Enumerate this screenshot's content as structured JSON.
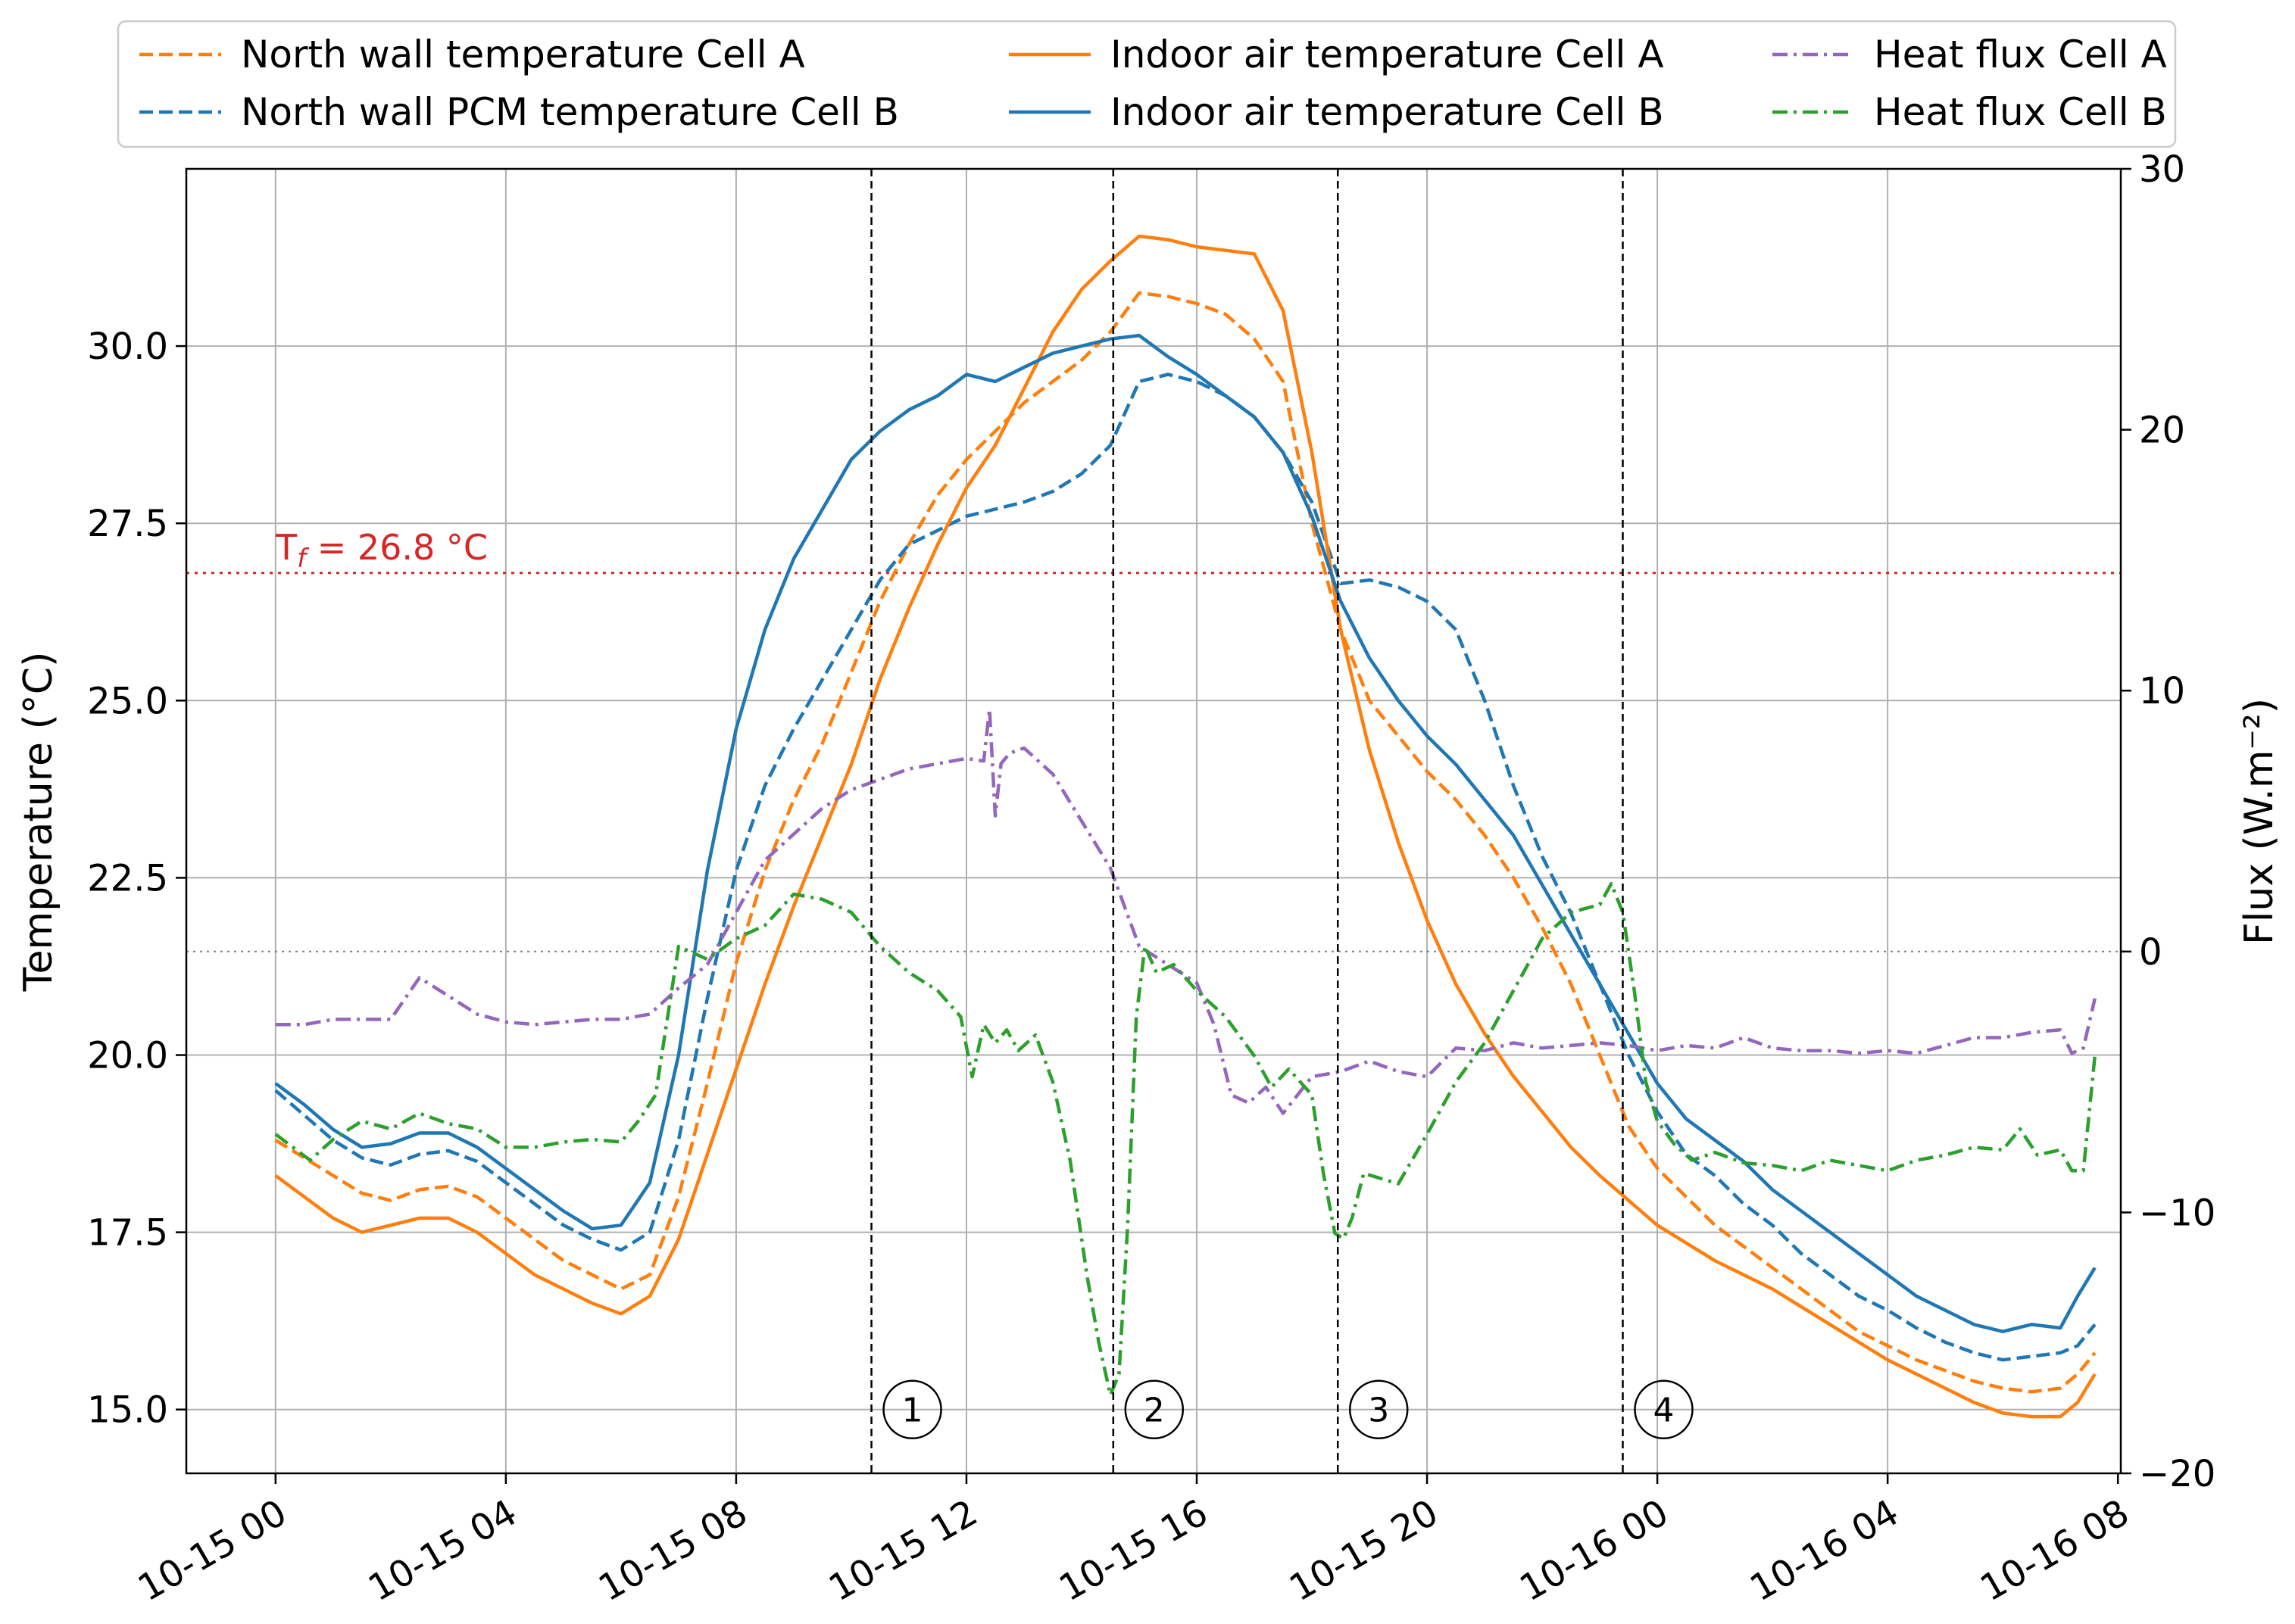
{
  "chart_data": {
    "type": "line",
    "xlabel": "",
    "ylabel": "Temperature (°C)",
    "y2label": "Flux (W.m⁻²)",
    "x_ticks": [
      {
        "hour": 0,
        "label": "10-15 00"
      },
      {
        "hour": 4,
        "label": "10-15 04"
      },
      {
        "hour": 8,
        "label": "10-15 08"
      },
      {
        "hour": 12,
        "label": "10-15 12"
      },
      {
        "hour": 16,
        "label": "10-15 16"
      },
      {
        "hour": 20,
        "label": "10-15 20"
      },
      {
        "hour": 24,
        "label": "10-16 00"
      },
      {
        "hour": 28,
        "label": "10-16 04"
      },
      {
        "hour": 32,
        "label": "10-16 08"
      }
    ],
    "xlim": [
      -1.55,
      32.05
    ],
    "ylim": [
      14.1,
      32.5
    ],
    "y_ticks": [
      "15.0",
      "17.5",
      "20.0",
      "22.5",
      "25.0",
      "27.5",
      "30.0"
    ],
    "y2lim": [
      -20,
      30
    ],
    "y2_ticks": [
      "−20",
      "−10",
      "0",
      "10",
      "20",
      "30"
    ],
    "grid": true,
    "legend_position": "top",
    "tf_line": {
      "value": 26.8,
      "label_main": "T",
      "label_sub": "f",
      "label_rest": " = 26.8 °C",
      "color": "#d62728"
    },
    "zero_flux_ref": 0,
    "phase_markers": [
      {
        "hour": 10.35,
        "label": "1"
      },
      {
        "hour": 14.55,
        "label": "2"
      },
      {
        "hour": 18.45,
        "label": "3"
      },
      {
        "hour": 23.4,
        "label": "4"
      }
    ],
    "marker_label_y": 15.0,
    "series": [
      {
        "name": "North wall temperature Cell A",
        "axis": "left",
        "color": "#ff7f0e",
        "dash": "dashed",
        "x": [
          0,
          0.5,
          1,
          1.5,
          2,
          2.5,
          3,
          3.5,
          4,
          4.5,
          5,
          5.5,
          6,
          6.5,
          7,
          7.5,
          8,
          8.5,
          9,
          9.5,
          10,
          10.5,
          11,
          11.5,
          12,
          12.5,
          13,
          13.5,
          14,
          14.5,
          15,
          15.5,
          16,
          16.5,
          17,
          17.5,
          18,
          18.5,
          19,
          19.5,
          20,
          20.5,
          21,
          21.5,
          22,
          22.5,
          23,
          23.5,
          24,
          24.5,
          25,
          25.5,
          26,
          26.5,
          27,
          27.5,
          28,
          28.5,
          29,
          29.5,
          30,
          30.5,
          31,
          31.3,
          31.6
        ],
        "values": [
          18.8,
          18.55,
          18.3,
          18.05,
          17.95,
          18.1,
          18.15,
          18.0,
          17.7,
          17.4,
          17.1,
          16.9,
          16.7,
          16.9,
          18.0,
          19.6,
          21.3,
          22.6,
          23.6,
          24.4,
          25.4,
          26.4,
          27.2,
          27.9,
          28.4,
          28.8,
          29.2,
          29.5,
          29.8,
          30.2,
          30.75,
          30.7,
          30.6,
          30.45,
          30.1,
          29.5,
          27.5,
          26.0,
          25.0,
          24.5,
          24.0,
          23.6,
          23.1,
          22.5,
          21.8,
          21.0,
          20.0,
          19.0,
          18.4,
          18.0,
          17.6,
          17.3,
          17.0,
          16.7,
          16.4,
          16.1,
          15.9,
          15.7,
          15.55,
          15.4,
          15.3,
          15.25,
          15.3,
          15.5,
          15.8
        ]
      },
      {
        "name": "North wall PCM temperature Cell B",
        "axis": "left",
        "color": "#1f77b4",
        "dash": "dashed",
        "x": [
          0,
          0.5,
          1,
          1.5,
          2,
          2.5,
          3,
          3.5,
          4,
          4.5,
          5,
          5.5,
          6,
          6.5,
          7,
          7.5,
          8,
          8.5,
          9,
          9.5,
          10,
          10.5,
          11,
          11.5,
          12,
          12.5,
          13,
          13.5,
          14,
          14.5,
          15,
          15.5,
          16,
          16.5,
          17,
          17.5,
          18,
          18.5,
          19,
          19.5,
          20,
          20.5,
          21,
          21.5,
          22,
          22.5,
          23,
          23.5,
          24,
          24.5,
          25,
          25.5,
          26,
          26.5,
          27,
          27.5,
          28,
          28.5,
          29,
          29.5,
          30,
          30.5,
          31,
          31.3,
          31.6
        ],
        "values": [
          19.5,
          19.15,
          18.8,
          18.55,
          18.45,
          18.6,
          18.65,
          18.5,
          18.2,
          17.9,
          17.6,
          17.4,
          17.25,
          17.5,
          18.8,
          20.8,
          22.6,
          23.8,
          24.6,
          25.3,
          26.0,
          26.7,
          27.2,
          27.4,
          27.6,
          27.7,
          27.8,
          27.95,
          28.2,
          28.6,
          29.5,
          29.6,
          29.5,
          29.3,
          29.0,
          28.5,
          27.8,
          26.65,
          26.7,
          26.6,
          26.4,
          26.0,
          25.0,
          23.8,
          22.8,
          22.0,
          21.0,
          20.0,
          19.2,
          18.6,
          18.3,
          17.9,
          17.6,
          17.2,
          16.9,
          16.6,
          16.4,
          16.15,
          15.95,
          15.8,
          15.7,
          15.75,
          15.8,
          15.9,
          16.2
        ]
      },
      {
        "name": "Indoor air temperature Cell A",
        "axis": "left",
        "color": "#ff7f0e",
        "dash": "solid",
        "x": [
          0,
          0.5,
          1,
          1.5,
          2,
          2.5,
          3,
          3.5,
          4,
          4.5,
          5,
          5.5,
          6,
          6.5,
          7,
          7.5,
          8,
          8.5,
          9,
          9.5,
          10,
          10.5,
          11,
          11.5,
          12,
          12.5,
          13,
          13.5,
          14,
          14.5,
          15,
          15.5,
          16,
          16.5,
          17,
          17.5,
          18,
          18.5,
          19,
          19.5,
          20,
          20.5,
          21,
          21.5,
          22,
          22.5,
          23,
          23.5,
          24,
          24.5,
          25,
          25.5,
          26,
          26.5,
          27,
          27.5,
          28,
          28.5,
          29,
          29.5,
          30,
          30.5,
          31,
          31.3,
          31.6
        ],
        "values": [
          18.3,
          18.0,
          17.7,
          17.5,
          17.6,
          17.7,
          17.7,
          17.5,
          17.2,
          16.9,
          16.7,
          16.5,
          16.35,
          16.6,
          17.4,
          18.6,
          19.8,
          21.0,
          22.1,
          23.1,
          24.1,
          25.3,
          26.3,
          27.2,
          28.0,
          28.6,
          29.4,
          30.2,
          30.8,
          31.2,
          31.55,
          31.5,
          31.4,
          31.35,
          31.3,
          30.5,
          28.5,
          26.0,
          24.3,
          23.0,
          21.9,
          21.0,
          20.3,
          19.7,
          19.2,
          18.7,
          18.3,
          17.95,
          17.6,
          17.35,
          17.1,
          16.9,
          16.7,
          16.45,
          16.2,
          15.95,
          15.7,
          15.5,
          15.3,
          15.1,
          14.95,
          14.9,
          14.9,
          15.1,
          15.5
        ]
      },
      {
        "name": "Indoor air temperature Cell B",
        "axis": "left",
        "color": "#1f77b4",
        "dash": "solid",
        "x": [
          0,
          0.5,
          1,
          1.5,
          2,
          2.5,
          3,
          3.5,
          4,
          4.5,
          5,
          5.5,
          6,
          6.5,
          7,
          7.5,
          8,
          8.5,
          9,
          9.5,
          10,
          10.5,
          11,
          11.5,
          12,
          12.5,
          13,
          13.5,
          14,
          14.5,
          15,
          15.5,
          16,
          16.5,
          17,
          17.5,
          18,
          18.5,
          19,
          19.5,
          20,
          20.5,
          21,
          21.5,
          22,
          22.5,
          23,
          23.5,
          24,
          24.5,
          25,
          25.5,
          26,
          26.5,
          27,
          27.5,
          28,
          28.5,
          29,
          29.5,
          30,
          30.5,
          31,
          31.3,
          31.6
        ],
        "values": [
          19.6,
          19.3,
          18.95,
          18.7,
          18.75,
          18.9,
          18.9,
          18.7,
          18.4,
          18.1,
          17.8,
          17.55,
          17.6,
          18.2,
          20.0,
          22.6,
          24.6,
          26.0,
          27.0,
          27.7,
          28.4,
          28.8,
          29.1,
          29.3,
          29.6,
          29.5,
          29.7,
          29.9,
          30.0,
          30.1,
          30.15,
          29.85,
          29.6,
          29.3,
          29.0,
          28.5,
          27.6,
          26.4,
          25.6,
          25.0,
          24.5,
          24.1,
          23.6,
          23.1,
          22.4,
          21.7,
          21.0,
          20.3,
          19.6,
          19.1,
          18.8,
          18.5,
          18.1,
          17.8,
          17.5,
          17.2,
          16.9,
          16.6,
          16.4,
          16.2,
          16.1,
          16.2,
          16.15,
          16.6,
          17.0
        ]
      },
      {
        "name": "Heat flux Cell A",
        "axis": "right",
        "color": "#9467bd",
        "dash": "dashdot",
        "x": [
          0,
          0.5,
          1,
          1.5,
          2,
          2.5,
          3,
          3.5,
          4,
          4.5,
          5,
          5.5,
          6,
          6.5,
          7,
          7.5,
          8,
          8.5,
          9,
          9.5,
          10,
          10.5,
          11,
          11.5,
          12,
          12.3,
          12.4,
          12.5,
          12.6,
          12.75,
          13,
          13.5,
          14,
          14.5,
          15,
          15.5,
          16,
          16.3,
          16.6,
          16.9,
          17.2,
          17.5,
          18,
          18.5,
          19,
          19.5,
          20,
          20.5,
          21,
          21.5,
          22,
          22.5,
          23,
          23.5,
          24,
          24.5,
          25,
          25.5,
          26,
          26.5,
          27,
          27.5,
          28,
          28.5,
          29,
          29.5,
          30,
          30.5,
          31,
          31.2,
          31.4,
          31.6
        ],
        "values": [
          -2.8,
          -2.8,
          -2.6,
          -2.6,
          -2.6,
          -1.0,
          -1.7,
          -2.4,
          -2.7,
          -2.8,
          -2.7,
          -2.6,
          -2.6,
          -2.4,
          -1.4,
          -0.5,
          1.5,
          3.5,
          4.5,
          5.5,
          6.2,
          6.6,
          7.0,
          7.2,
          7.4,
          7.3,
          9.3,
          5.2,
          7.2,
          7.6,
          7.8,
          6.8,
          5.0,
          3.2,
          0.2,
          -0.5,
          -1.2,
          -2.8,
          -5.5,
          -5.8,
          -5.2,
          -6.2,
          -4.8,
          -4.6,
          -4.2,
          -4.6,
          -4.8,
          -3.7,
          -3.8,
          -3.5,
          -3.7,
          -3.6,
          -3.5,
          -3.6,
          -3.8,
          -3.6,
          -3.7,
          -3.3,
          -3.7,
          -3.8,
          -3.8,
          -3.9,
          -3.8,
          -3.9,
          -3.6,
          -3.3,
          -3.3,
          -3.1,
          -3.0,
          -3.9,
          -3.7,
          -1.8
        ]
      },
      {
        "name": "Heat flux Cell B",
        "axis": "right",
        "color": "#2ca02c",
        "dash": "dashdot",
        "x": [
          0,
          0.3,
          0.6,
          1,
          1.5,
          2,
          2.5,
          3,
          3.5,
          4,
          4.5,
          5,
          5.5,
          6,
          6.3,
          6.6,
          7,
          7.5,
          8,
          8.5,
          9,
          9.5,
          10,
          10.5,
          11,
          11.5,
          11.9,
          12.1,
          12.3,
          12.5,
          12.7,
          12.9,
          13.2,
          13.5,
          13.8,
          14.1,
          14.3,
          14.5,
          14.65,
          14.8,
          14.95,
          15.1,
          15.3,
          15.6,
          16,
          16.5,
          17,
          17.3,
          17.6,
          18,
          18.2,
          18.4,
          18.55,
          18.7,
          18.9,
          19.2,
          19.5,
          20,
          20.5,
          21,
          21.5,
          22,
          22.5,
          23,
          23.2,
          23.4,
          23.6,
          23.8,
          24,
          24.3,
          24.6,
          25,
          25.5,
          26,
          26.5,
          27,
          27.5,
          28,
          28.5,
          29,
          29.5,
          30,
          30.3,
          30.6,
          31,
          31.2,
          31.4,
          31.6
        ],
        "values": [
          -7.0,
          -7.5,
          -8.0,
          -7.2,
          -6.5,
          -6.8,
          -6.2,
          -6.6,
          -6.8,
          -7.5,
          -7.5,
          -7.3,
          -7.2,
          -7.3,
          -6.5,
          -5.5,
          0.2,
          -0.3,
          0.5,
          1.0,
          2.2,
          2.0,
          1.5,
          0.2,
          -0.8,
          -1.5,
          -2.5,
          -4.8,
          -2.8,
          -3.5,
          -3.0,
          -3.8,
          -3.2,
          -5.0,
          -8.0,
          -12.5,
          -15.0,
          -17.0,
          -16.2,
          -10.5,
          -2.5,
          0.2,
          -0.8,
          -0.5,
          -1.5,
          -2.5,
          -4.0,
          -5.2,
          -4.5,
          -5.5,
          -8.5,
          -10.8,
          -11.0,
          -10.2,
          -8.5,
          -8.7,
          -8.9,
          -7.0,
          -5.0,
          -3.5,
          -1.5,
          0.5,
          1.5,
          1.8,
          2.6,
          1.5,
          -1.5,
          -5.0,
          -6.5,
          -7.4,
          -8.0,
          -7.7,
          -8.1,
          -8.2,
          -8.4,
          -8.0,
          -8.2,
          -8.4,
          -8.0,
          -7.8,
          -7.5,
          -7.6,
          -6.8,
          -7.8,
          -7.6,
          -8.4,
          -8.4,
          -4.0
        ]
      }
    ]
  }
}
